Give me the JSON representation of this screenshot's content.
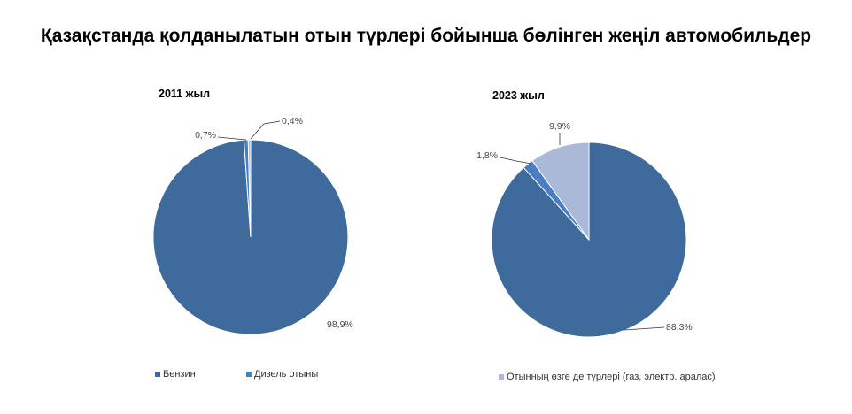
{
  "title": "Қазақстанда қолданылатын отын түрлері бойынша бөлінген жеңіл автомобильдер",
  "chart_data": [
    {
      "type": "pie",
      "title": "2011 жыл",
      "slices": [
        {
          "name": "Бензин",
          "value": 98.9,
          "label": "98,9%",
          "color": "#3f6a9c"
        },
        {
          "name": "Дизель отыны",
          "value": 0.7,
          "label": "0,7%",
          "color": "#4a7ec4"
        },
        {
          "name": "Отынның өзге де түрлері (газ, электр, аралас)",
          "value": 0.4,
          "label": "0,4%",
          "color": "#aab9d8"
        }
      ]
    },
    {
      "type": "pie",
      "title": "2023 жыл",
      "slices": [
        {
          "name": "Бензин",
          "value": 88.3,
          "label": "88,3%",
          "color": "#3f6a9c"
        },
        {
          "name": "Дизель отыны",
          "value": 1.8,
          "label": "1,8%",
          "color": "#4a7ec4"
        },
        {
          "name": "Отынның өзге де түрлері (газ, электр, аралас)",
          "value": 9.9,
          "label": "9,9%",
          "color": "#aab9d8"
        }
      ]
    }
  ],
  "legend": [
    {
      "label": "Бензин",
      "color": "#3f6a9c"
    },
    {
      "label": "Дизель отыны",
      "color": "#4a7ec4"
    },
    {
      "label": "Отынның өзге де түрлері (газ, электр, аралас)",
      "color": "#aab9d8"
    }
  ]
}
